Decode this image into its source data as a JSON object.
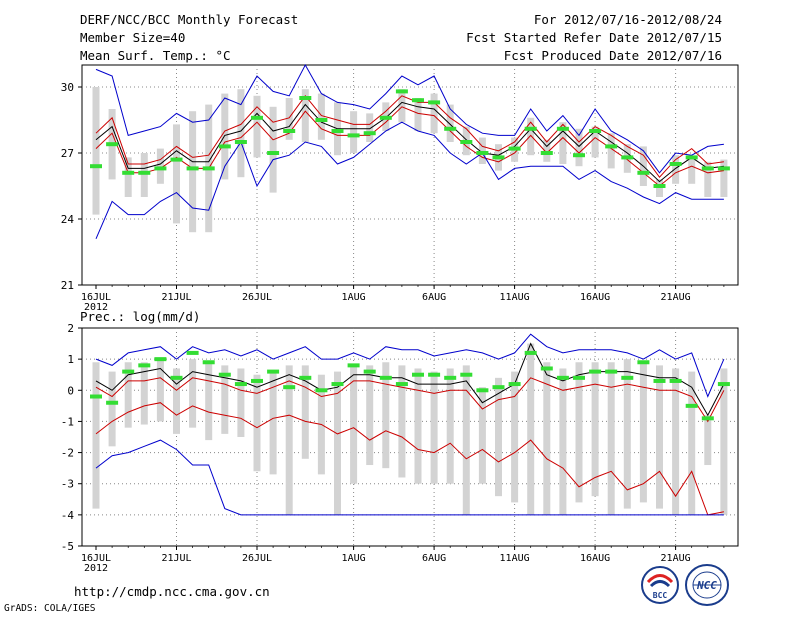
{
  "header": {
    "title": "DERF/NCC/BCC Monthly Forecast",
    "member_size": "Member Size=40",
    "variable": "Mean Surf. Temp.: °C",
    "forecast_range": "For 2012/07/16-2012/08/24",
    "start_date": "Fcst Started Refer Date 2012/07/15",
    "produced_date": "Fcst Produced Date 2012/07/16"
  },
  "precip_label": "Prec.: log(mm/d)",
  "footer": {
    "url": "http://cmdp.ncc.cma.gov.cn",
    "grads": "GrADS: COLA/IGES"
  },
  "logos": {
    "bcc": "BCC",
    "ncc": "NCC"
  },
  "colors": {
    "ensemble_max_min": "#0000cc",
    "ensemble_spread": "#cc0000",
    "ensemble_mean": "#000000",
    "member_box": "#d3d3d3",
    "observed_mark": "#33dd33"
  },
  "chart_data": [
    {
      "type": "line",
      "title": "Mean Surf. Temp.: °C",
      "x_tick_labels": [
        "16JUL",
        "21JUL",
        "26JUL",
        "1AUG",
        "6AUG",
        "11AUG",
        "16AUG",
        "21AUG"
      ],
      "x_tick_days": [
        0,
        5,
        10,
        16,
        21,
        26,
        31,
        36
      ],
      "x_sub_label": "2012",
      "days": 40,
      "ylim": [
        21,
        31
      ],
      "y_ticks": [
        21,
        24,
        27,
        30
      ],
      "grid": true,
      "series": [
        {
          "name": "max",
          "values": [
            30.8,
            30.5,
            27.8,
            28.0,
            28.2,
            28.8,
            28.4,
            28.5,
            29.5,
            29.2,
            30.5,
            29.8,
            29.6,
            31.0,
            29.7,
            29.3,
            29.2,
            29.0,
            29.7,
            30.5,
            30.1,
            30.5,
            29.0,
            28.3,
            27.9,
            27.8,
            27.8,
            29.0,
            28.0,
            28.7,
            27.8,
            29.0,
            28.0,
            27.6,
            27.1,
            26.1,
            27.0,
            26.9,
            27.3,
            27.4
          ]
        },
        {
          "name": "upper",
          "values": [
            27.9,
            28.6,
            26.5,
            26.5,
            26.7,
            27.3,
            26.8,
            26.9,
            28.0,
            28.3,
            29.1,
            28.4,
            28.6,
            29.6,
            28.7,
            28.5,
            28.3,
            28.3,
            28.9,
            29.6,
            29.3,
            29.3,
            28.6,
            28.1,
            27.3,
            27.1,
            27.5,
            28.4,
            27.5,
            28.3,
            27.5,
            28.2,
            27.8,
            27.3,
            26.9,
            25.9,
            26.7,
            27.2,
            26.5,
            26.6
          ]
        },
        {
          "name": "mean",
          "values": [
            27.6,
            28.2,
            26.3,
            26.3,
            26.5,
            27.1,
            26.6,
            26.6,
            27.8,
            28.0,
            28.8,
            28.0,
            28.2,
            29.2,
            28.4,
            28.1,
            28.1,
            28.1,
            28.6,
            29.3,
            29.1,
            29.0,
            28.3,
            27.6,
            27.0,
            26.9,
            27.3,
            28.1,
            27.3,
            28.0,
            27.3,
            28.0,
            27.5,
            27.0,
            26.4,
            25.7,
            26.3,
            26.8,
            26.3,
            26.4
          ]
        },
        {
          "name": "lower",
          "values": [
            27.2,
            27.9,
            26.1,
            26.1,
            26.3,
            26.8,
            26.3,
            26.3,
            27.5,
            27.7,
            28.4,
            27.6,
            27.9,
            28.9,
            28.1,
            27.8,
            27.8,
            27.8,
            28.4,
            29.1,
            28.8,
            28.7,
            28.0,
            27.3,
            26.8,
            26.6,
            27.0,
            27.8,
            27.0,
            27.7,
            27.0,
            27.7,
            27.2,
            26.7,
            26.1,
            25.5,
            26.1,
            26.4,
            26.1,
            26.2
          ]
        },
        {
          "name": "min",
          "values": [
            23.1,
            24.8,
            24.2,
            24.2,
            24.8,
            25.2,
            24.5,
            24.4,
            26.4,
            27.5,
            25.5,
            26.7,
            26.9,
            27.5,
            27.3,
            26.5,
            26.8,
            27.4,
            28.0,
            28.4,
            28.0,
            27.8,
            27.0,
            26.5,
            27.0,
            25.8,
            26.3,
            26.4,
            26.4,
            26.4,
            25.8,
            26.2,
            25.7,
            25.4,
            25.0,
            24.7,
            25.2,
            24.9,
            24.9,
            24.9
          ]
        }
      ],
      "member_box_low": [
        24.2,
        25.8,
        25.0,
        25.0,
        25.6,
        23.8,
        23.4,
        23.4,
        25.8,
        25.9,
        26.8,
        25.2,
        27.6,
        27.5,
        27.6,
        26.9,
        27.0,
        27.5,
        28.0,
        28.4,
        28.0,
        27.9,
        27.5,
        26.9,
        26.5,
        26.2,
        26.6,
        26.9,
        26.6,
        26.5,
        26.4,
        26.8,
        26.3,
        26.1,
        25.5,
        25.0,
        25.6,
        25.6,
        25.0,
        25.0
      ],
      "member_box_high": [
        30.0,
        29.0,
        26.8,
        27.0,
        27.2,
        28.3,
        28.9,
        29.2,
        29.7,
        29.9,
        29.6,
        29.1,
        29.5,
        29.9,
        29.7,
        29.3,
        28.9,
        28.8,
        29.3,
        29.9,
        29.5,
        29.7,
        29.2,
        28.2,
        27.7,
        27.4,
        27.7,
        28.6,
        27.6,
        28.4,
        28.1,
        28.2,
        27.9,
        27.4,
        27.3,
        25.8,
        26.9,
        26.8,
        26.6,
        26.7
      ],
      "observed": [
        26.4,
        27.4,
        26.1,
        26.1,
        26.3,
        26.7,
        26.3,
        26.3,
        27.3,
        27.5,
        28.6,
        27.0,
        28.0,
        29.5,
        28.5,
        28.0,
        27.8,
        27.9,
        28.6,
        29.8,
        29.4,
        29.3,
        28.1,
        27.5,
        27.0,
        26.8,
        27.2,
        28.1,
        27.0,
        28.1,
        26.9,
        28.0,
        27.3,
        26.8,
        26.1,
        25.5,
        26.5,
        26.8,
        26.3,
        26.3
      ]
    },
    {
      "type": "line",
      "title": "Prec.: log(mm/d)",
      "x_tick_labels": [
        "16JUL",
        "21JUL",
        "26JUL",
        "1AUG",
        "6AUG",
        "11AUG",
        "16AUG",
        "21AUG"
      ],
      "x_tick_days": [
        0,
        5,
        10,
        16,
        21,
        26,
        31,
        36
      ],
      "x_sub_label": "2012",
      "days": 40,
      "ylim": [
        -5,
        2
      ],
      "y_ticks": [
        -5,
        -4,
        -3,
        -2,
        -1,
        0,
        1,
        2
      ],
      "grid": true,
      "series": [
        {
          "name": "max",
          "values": [
            1.0,
            0.8,
            1.2,
            1.3,
            1.4,
            1.0,
            1.4,
            1.2,
            1.3,
            1.1,
            1.3,
            1.0,
            1.2,
            1.4,
            1.0,
            1.0,
            1.2,
            1.0,
            1.4,
            1.3,
            1.3,
            1.1,
            1.2,
            1.3,
            1.2,
            1.0,
            1.2,
            1.8,
            1.4,
            1.2,
            1.3,
            1.3,
            1.3,
            1.2,
            1.0,
            1.3,
            1.0,
            1.2,
            -0.2,
            1.0
          ]
        },
        {
          "name": "mean",
          "values": [
            0.3,
            0.0,
            0.5,
            0.6,
            0.7,
            0.2,
            0.6,
            0.5,
            0.4,
            0.3,
            0.1,
            0.3,
            0.5,
            0.3,
            0.0,
            0.1,
            0.5,
            0.5,
            0.4,
            0.4,
            0.2,
            0.2,
            0.2,
            0.3,
            -0.4,
            -0.1,
            0.2,
            1.5,
            0.5,
            0.3,
            0.5,
            0.6,
            0.6,
            0.6,
            0.5,
            0.4,
            0.4,
            0.1,
            -0.8,
            0.2
          ]
        },
        {
          "name": "upper",
          "values": [
            0.1,
            -0.2,
            0.3,
            0.3,
            0.4,
            0.0,
            0.4,
            0.3,
            0.2,
            0.0,
            -0.1,
            0.1,
            0.3,
            0.1,
            -0.2,
            -0.1,
            0.3,
            0.3,
            0.2,
            0.1,
            0.0,
            -0.1,
            0.0,
            0.0,
            -0.6,
            -0.3,
            -0.2,
            0.4,
            0.2,
            0.0,
            0.1,
            0.2,
            0.1,
            0.2,
            0.1,
            0.0,
            0.0,
            -0.2,
            -1.0,
            0.0
          ]
        },
        {
          "name": "lower",
          "values": [
            -1.4,
            -1.0,
            -0.7,
            -0.5,
            -0.4,
            -0.8,
            -0.5,
            -0.7,
            -0.8,
            -0.9,
            -1.2,
            -0.9,
            -0.8,
            -1.0,
            -1.1,
            -1.4,
            -1.2,
            -1.6,
            -1.3,
            -1.5,
            -1.9,
            -2.0,
            -1.7,
            -2.2,
            -1.9,
            -2.3,
            -2.0,
            -1.6,
            -2.2,
            -2.5,
            -3.1,
            -2.8,
            -2.6,
            -3.2,
            -3.0,
            -2.6,
            -3.4,
            -2.6,
            -4.0,
            -3.9
          ]
        },
        {
          "name": "min",
          "values": [
            -2.5,
            -2.1,
            -2.0,
            -1.8,
            -1.6,
            -1.9,
            -2.4,
            -2.4,
            -3.8,
            -4.0,
            -4.0,
            -4.0,
            -4.0,
            -4.0,
            -4.0,
            -4.0,
            -4.0,
            -4.0,
            -4.0,
            -4.0,
            -4.0,
            -4.0,
            -4.0,
            -4.0,
            -4.0,
            -4.0,
            -4.0,
            -4.0,
            -4.0,
            -4.0,
            -4.0,
            -4.0,
            -4.0,
            -4.0,
            -4.0,
            -4.0,
            -4.0,
            -4.0,
            -4.0,
            -4.0
          ]
        }
      ],
      "member_box_low": [
        -3.8,
        -1.8,
        -1.2,
        -1.1,
        -1.0,
        -1.4,
        -1.2,
        -1.6,
        -1.4,
        -1.5,
        -2.6,
        -2.7,
        -4.0,
        -2.2,
        -2.7,
        -4.0,
        -3.0,
        -2.4,
        -2.5,
        -2.8,
        -3.0,
        -3.0,
        -3.0,
        -4.0,
        -3.0,
        -3.4,
        -3.6,
        -4.0,
        -4.0,
        -4.0,
        -3.6,
        -3.4,
        -4.0,
        -3.8,
        -3.6,
        -3.8,
        -4.0,
        -4.0,
        -2.4,
        -4.0
      ],
      "member_box_high": [
        0.9,
        0.6,
        0.9,
        0.9,
        1.0,
        0.7,
        1.0,
        0.9,
        0.8,
        0.7,
        0.5,
        0.6,
        0.8,
        0.8,
        0.5,
        0.6,
        0.8,
        0.8,
        0.9,
        0.8,
        0.7,
        0.6,
        0.7,
        0.8,
        0.1,
        0.4,
        0.6,
        1.5,
        0.9,
        0.7,
        0.9,
        0.9,
        0.9,
        1.0,
        0.9,
        0.8,
        0.7,
        0.6,
        -0.8,
        0.7
      ],
      "observed": [
        -0.2,
        -0.4,
        0.6,
        0.8,
        1.0,
        0.4,
        1.2,
        0.9,
        0.5,
        0.2,
        0.3,
        0.6,
        0.1,
        0.4,
        0.0,
        0.2,
        0.8,
        0.6,
        0.4,
        0.2,
        0.5,
        0.5,
        0.4,
        0.5,
        0.0,
        0.1,
        0.2,
        1.2,
        0.7,
        0.4,
        0.4,
        0.6,
        0.6,
        0.4,
        0.9,
        0.3,
        0.3,
        -0.5,
        -0.9,
        0.2
      ]
    }
  ]
}
